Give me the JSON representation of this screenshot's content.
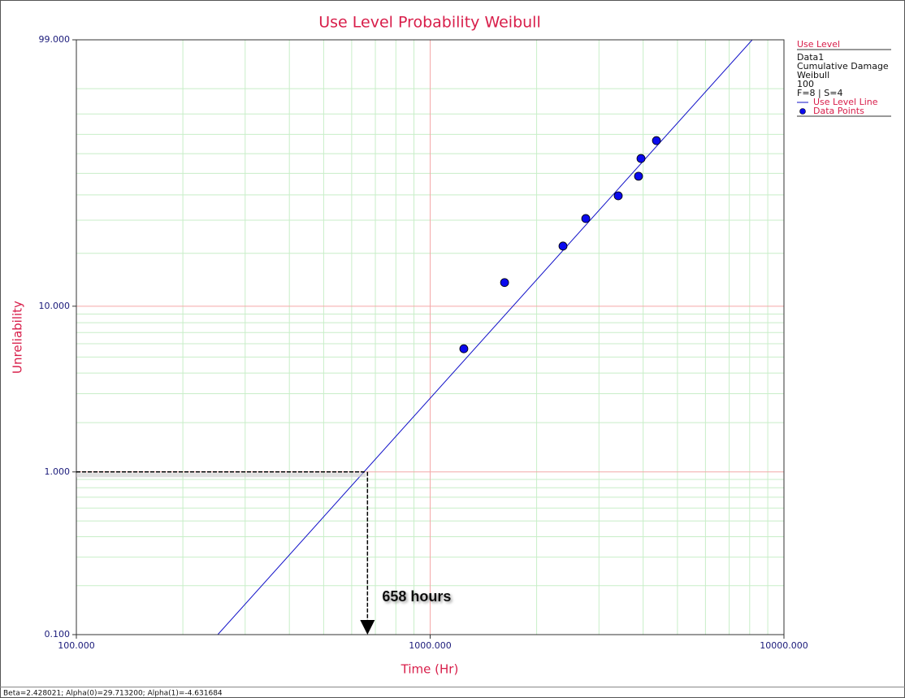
{
  "chart_data": {
    "type": "scatter",
    "title": "Use Level Probability Weibull",
    "x_label": "Time (Hr)",
    "y_label": "Unreliability",
    "xscale": "log",
    "yscale": "weibull",
    "xlim": [
      100,
      10000
    ],
    "ylim": [
      0.1,
      99
    ],
    "xticks": [
      {
        "value": 100,
        "label": "100.000"
      },
      {
        "value": 1000,
        "label": "1000.000"
      },
      {
        "value": 10000,
        "label": "10000.000"
      }
    ],
    "yticks": [
      {
        "value": 0.1,
        "label": "0.100"
      },
      {
        "value": 1,
        "label": "1.000"
      },
      {
        "value": 10,
        "label": "10.000"
      },
      {
        "value": 99,
        "label": "99.000"
      }
    ],
    "grid": true,
    "legend_title": "Use Level",
    "legend_info": [
      "Data1",
      "Cumulative Damage",
      "Weibull",
      "100",
      "F=8 | S=4"
    ],
    "series": [
      {
        "name": "Use Level Line",
        "mode": "line",
        "color": "#1010c8",
        "x": [
          251,
          8135
        ],
        "values": [
          0.1,
          99
        ]
      },
      {
        "name": "Data Points",
        "mode": "markers",
        "color": "#0a0aee",
        "x": [
          1245,
          1623,
          2374,
          2753,
          3401,
          3881,
          3944,
          4361
        ],
        "values": [
          5.6,
          13.7,
          21.9,
          30.6,
          39.6,
          48.6,
          57.5,
          66.8
        ]
      }
    ],
    "annotation": {
      "text": "658 hours",
      "x": 658,
      "y": 1
    },
    "status": "Beta=2.428021; Alpha(0)=29.713200; Alpha(1)=-4.631684"
  }
}
